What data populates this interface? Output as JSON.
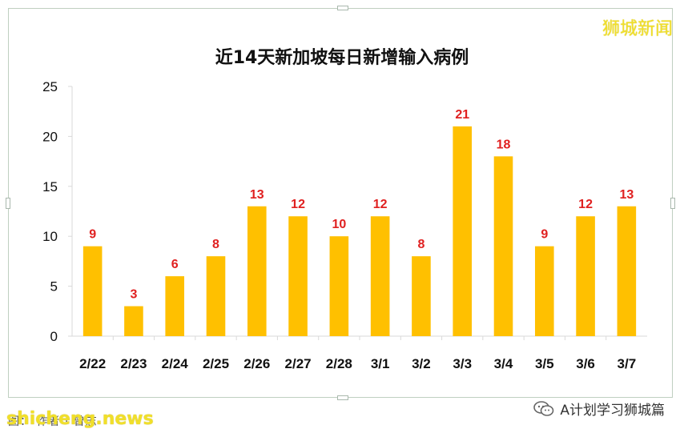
{
  "watermark_top": "狮城新闻",
  "footer": {
    "source_text": "图：  作者 · 曾志",
    "site_watermark": "shicheng.news",
    "account_text": "A计划学习狮城篇"
  },
  "colors": {
    "bar": "#ffc000",
    "label": "#e02020",
    "axis": "#d9d9d9",
    "text": "#111111"
  },
  "chart_data": {
    "type": "bar",
    "title": "近14天新加坡每日新增输入病例",
    "categories": [
      "2/22",
      "2/23",
      "2/24",
      "2/25",
      "2/26",
      "2/27",
      "2/28",
      "3/1",
      "3/2",
      "3/3",
      "3/4",
      "3/5",
      "3/6",
      "3/7"
    ],
    "values": [
      9,
      3,
      6,
      8,
      13,
      12,
      10,
      12,
      8,
      21,
      18,
      9,
      12,
      13
    ],
    "ylim": [
      0,
      25
    ],
    "yticks": [
      0,
      5,
      10,
      15,
      20,
      25
    ],
    "xlabel": "",
    "ylabel": "",
    "grid": false,
    "data_labels": true
  }
}
